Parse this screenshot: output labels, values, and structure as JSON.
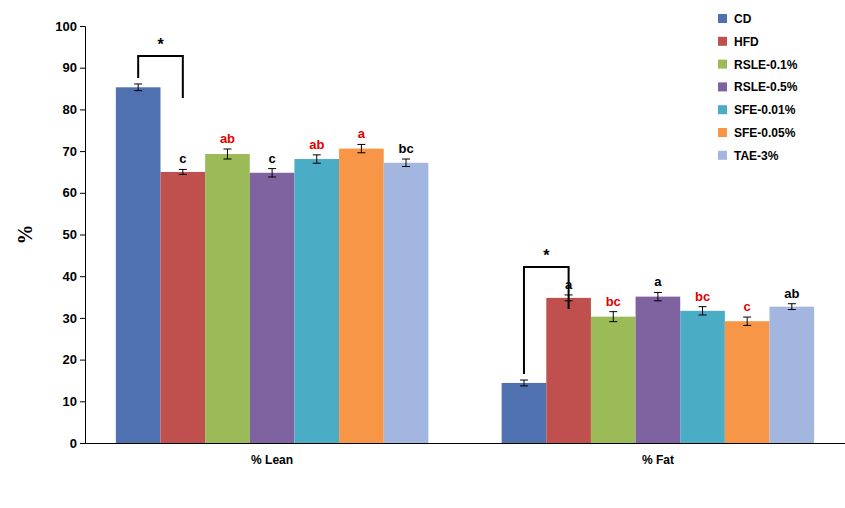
{
  "chart_data": {
    "type": "bar",
    "y_label": "%",
    "categories": [
      "% Lean",
      "% Fat"
    ],
    "ylim": [
      0,
      100
    ],
    "yticks": [
      0,
      10,
      20,
      30,
      40,
      50,
      60,
      70,
      80,
      90,
      100
    ],
    "grid": false,
    "legend": "upper right",
    "series": [
      {
        "name": "CD",
        "color": "#4f71b0",
        "values": [
          85.3,
          14.4
        ],
        "errors": [
          0.8,
          0.7
        ],
        "letters": [
          null,
          null
        ],
        "letter_colors": [
          null,
          null
        ]
      },
      {
        "name": "HFD",
        "color": "#c0504d",
        "values": [
          65.0,
          34.8
        ],
        "errors": [
          0.6,
          0.7
        ],
        "letters": [
          "c",
          "a"
        ],
        "letter_colors": [
          "#000000",
          "#000000"
        ]
      },
      {
        "name": "RSLE-0.1%",
        "color": "#9bbb59",
        "values": [
          69.3,
          30.3
        ],
        "errors": [
          1.2,
          1.2
        ],
        "letters": [
          "ab",
          "bc"
        ],
        "letter_colors": [
          "#e00000",
          "#e00000"
        ]
      },
      {
        "name": "RSLE-0.5%",
        "color": "#7f63a1",
        "values": [
          64.8,
          35.1
        ],
        "errors": [
          1.0,
          1.0
        ],
        "letters": [
          "c",
          "a"
        ],
        "letter_colors": [
          "#000000",
          "#000000"
        ]
      },
      {
        "name": "SFE-0.01%",
        "color": "#4bacc6",
        "values": [
          68.1,
          31.7
        ],
        "errors": [
          1.0,
          1.0
        ],
        "letters": [
          "ab",
          "bc"
        ],
        "letter_colors": [
          "#e00000",
          "#e00000"
        ]
      },
      {
        "name": "SFE-0.05%",
        "color": "#f79646",
        "values": [
          70.6,
          29.2
        ],
        "errors": [
          1.0,
          1.0
        ],
        "letters": [
          "a",
          "c"
        ],
        "letter_colors": [
          "#e00000",
          "#e00000"
        ]
      },
      {
        "name": "TAE-3%",
        "color": "#a3b6df",
        "values": [
          67.2,
          32.7
        ],
        "errors": [
          0.9,
          0.7
        ],
        "letters": [
          "bc",
          "ab"
        ],
        "letter_colors": [
          "#000000",
          "#000000"
        ]
      }
    ],
    "brackets": [
      {
        "category": "% Lean",
        "between": [
          "CD",
          "HFD"
        ],
        "text": "*"
      },
      {
        "category": "% Fat",
        "between": [
          "CD",
          "HFD"
        ],
        "text": "*"
      }
    ]
  }
}
